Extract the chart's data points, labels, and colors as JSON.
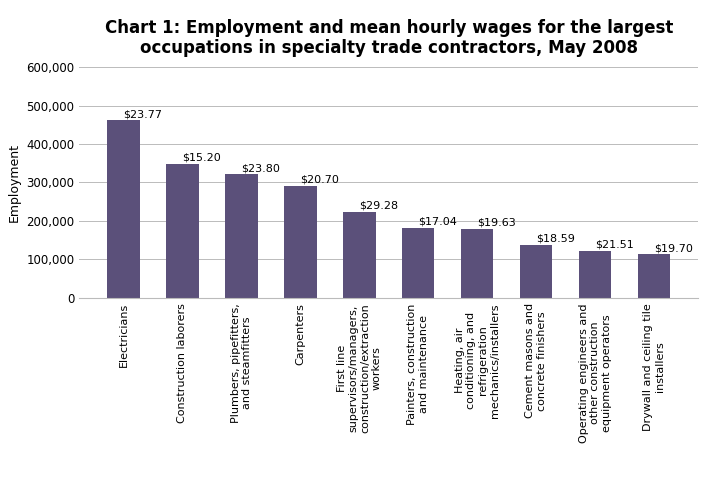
{
  "title": "Chart 1: Employment and mean hourly wages for the largest\noccupations in specialty trade contractors, May 2008",
  "categories": [
    "Electricians",
    "Construction laborers",
    "Plumbers, pipefitters,\nand steamfitters",
    "Carpenters",
    "First line\nsupervisors/managers,\nconstruction/extraction\nworkers",
    "Painters, construction\nand maintenance",
    "Heating, air\nconditioning, and\nrefrigeration\nmechanics/installers",
    "Cement masons and\nconcrete finishers",
    "Operating engineers and\nother construction\nequipment operators",
    "Drywall and ceiling tile\ninstallers"
  ],
  "values": [
    462000,
    349000,
    321000,
    291000,
    223000,
    182000,
    179000,
    138000,
    122000,
    113000
  ],
  "wages": [
    "$23.77",
    "$15.20",
    "$23.80",
    "$20.70",
    "$29.28",
    "$17.04",
    "$19.63",
    "$18.59",
    "$21.51",
    "$19.70"
  ],
  "bar_color": "#5b507a",
  "ylabel": "Employment",
  "ylim": [
    0,
    600000
  ],
  "yticks": [
    0,
    100000,
    200000,
    300000,
    400000,
    500000,
    600000
  ],
  "background_color": "#ffffff",
  "grid_color": "#bbbbbb",
  "title_fontsize": 12,
  "ylabel_fontsize": 9,
  "label_fontsize": 8,
  "wage_fontsize": 8,
  "ytick_fontsize": 8.5
}
